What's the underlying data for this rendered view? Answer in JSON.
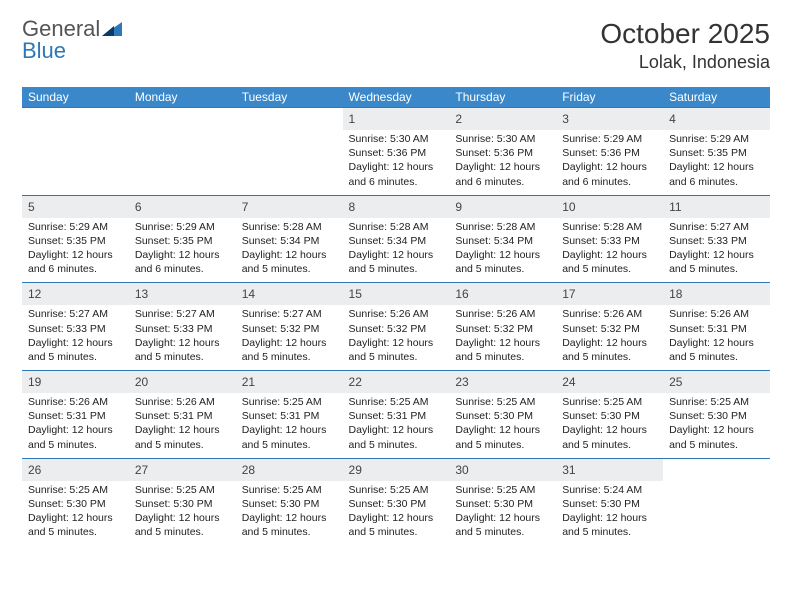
{
  "logo": {
    "general": "General",
    "blue": "Blue"
  },
  "header": {
    "month": "October 2025",
    "location": "Lolak, Indonesia"
  },
  "colors": {
    "accent": "#3a87c9",
    "rule": "#2e78b7",
    "daybg": "#ecedef"
  },
  "weekdays": [
    "Sunday",
    "Monday",
    "Tuesday",
    "Wednesday",
    "Thursday",
    "Friday",
    "Saturday"
  ],
  "weeks": [
    {
      "nums": [
        "",
        "",
        "",
        "1",
        "2",
        "3",
        "4"
      ],
      "cells": [
        null,
        null,
        null,
        {
          "sr": "5:30 AM",
          "ss": "5:36 PM",
          "dl": "12 hours and 6 minutes."
        },
        {
          "sr": "5:30 AM",
          "ss": "5:36 PM",
          "dl": "12 hours and 6 minutes."
        },
        {
          "sr": "5:29 AM",
          "ss": "5:36 PM",
          "dl": "12 hours and 6 minutes."
        },
        {
          "sr": "5:29 AM",
          "ss": "5:35 PM",
          "dl": "12 hours and 6 minutes."
        }
      ]
    },
    {
      "nums": [
        "5",
        "6",
        "7",
        "8",
        "9",
        "10",
        "11"
      ],
      "cells": [
        {
          "sr": "5:29 AM",
          "ss": "5:35 PM",
          "dl": "12 hours and 6 minutes."
        },
        {
          "sr": "5:29 AM",
          "ss": "5:35 PM",
          "dl": "12 hours and 6 minutes."
        },
        {
          "sr": "5:28 AM",
          "ss": "5:34 PM",
          "dl": "12 hours and 5 minutes."
        },
        {
          "sr": "5:28 AM",
          "ss": "5:34 PM",
          "dl": "12 hours and 5 minutes."
        },
        {
          "sr": "5:28 AM",
          "ss": "5:34 PM",
          "dl": "12 hours and 5 minutes."
        },
        {
          "sr": "5:28 AM",
          "ss": "5:33 PM",
          "dl": "12 hours and 5 minutes."
        },
        {
          "sr": "5:27 AM",
          "ss": "5:33 PM",
          "dl": "12 hours and 5 minutes."
        }
      ]
    },
    {
      "nums": [
        "12",
        "13",
        "14",
        "15",
        "16",
        "17",
        "18"
      ],
      "cells": [
        {
          "sr": "5:27 AM",
          "ss": "5:33 PM",
          "dl": "12 hours and 5 minutes."
        },
        {
          "sr": "5:27 AM",
          "ss": "5:33 PM",
          "dl": "12 hours and 5 minutes."
        },
        {
          "sr": "5:27 AM",
          "ss": "5:32 PM",
          "dl": "12 hours and 5 minutes."
        },
        {
          "sr": "5:26 AM",
          "ss": "5:32 PM",
          "dl": "12 hours and 5 minutes."
        },
        {
          "sr": "5:26 AM",
          "ss": "5:32 PM",
          "dl": "12 hours and 5 minutes."
        },
        {
          "sr": "5:26 AM",
          "ss": "5:32 PM",
          "dl": "12 hours and 5 minutes."
        },
        {
          "sr": "5:26 AM",
          "ss": "5:31 PM",
          "dl": "12 hours and 5 minutes."
        }
      ]
    },
    {
      "nums": [
        "19",
        "20",
        "21",
        "22",
        "23",
        "24",
        "25"
      ],
      "cells": [
        {
          "sr": "5:26 AM",
          "ss": "5:31 PM",
          "dl": "12 hours and 5 minutes."
        },
        {
          "sr": "5:26 AM",
          "ss": "5:31 PM",
          "dl": "12 hours and 5 minutes."
        },
        {
          "sr": "5:25 AM",
          "ss": "5:31 PM",
          "dl": "12 hours and 5 minutes."
        },
        {
          "sr": "5:25 AM",
          "ss": "5:31 PM",
          "dl": "12 hours and 5 minutes."
        },
        {
          "sr": "5:25 AM",
          "ss": "5:30 PM",
          "dl": "12 hours and 5 minutes."
        },
        {
          "sr": "5:25 AM",
          "ss": "5:30 PM",
          "dl": "12 hours and 5 minutes."
        },
        {
          "sr": "5:25 AM",
          "ss": "5:30 PM",
          "dl": "12 hours and 5 minutes."
        }
      ]
    },
    {
      "nums": [
        "26",
        "27",
        "28",
        "29",
        "30",
        "31",
        ""
      ],
      "cells": [
        {
          "sr": "5:25 AM",
          "ss": "5:30 PM",
          "dl": "12 hours and 5 minutes."
        },
        {
          "sr": "5:25 AM",
          "ss": "5:30 PM",
          "dl": "12 hours and 5 minutes."
        },
        {
          "sr": "5:25 AM",
          "ss": "5:30 PM",
          "dl": "12 hours and 5 minutes."
        },
        {
          "sr": "5:25 AM",
          "ss": "5:30 PM",
          "dl": "12 hours and 5 minutes."
        },
        {
          "sr": "5:25 AM",
          "ss": "5:30 PM",
          "dl": "12 hours and 5 minutes."
        },
        {
          "sr": "5:24 AM",
          "ss": "5:30 PM",
          "dl": "12 hours and 5 minutes."
        },
        null
      ]
    }
  ],
  "labels": {
    "sunrise": "Sunrise: ",
    "sunset": "Sunset: ",
    "daylight": "Daylight: "
  }
}
